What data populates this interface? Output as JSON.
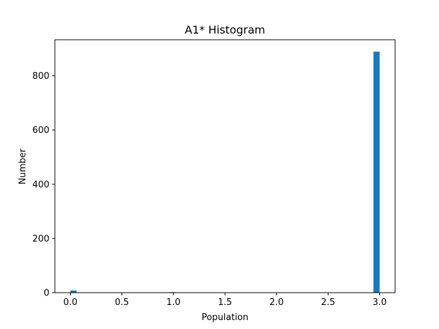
{
  "chart_data": {
    "type": "bar",
    "title": "A1* Histogram",
    "xlabel": "Population",
    "ylabel": "Number",
    "xlim": [
      -0.15,
      3.15
    ],
    "ylim": [
      0,
      933
    ],
    "x_ticks": [
      0.0,
      0.5,
      1.0,
      1.5,
      2.0,
      2.5,
      3.0
    ],
    "x_tick_labels": [
      "0.0",
      "0.5",
      "1.0",
      "1.5",
      "2.0",
      "2.5",
      "3.0"
    ],
    "y_ticks": [
      0,
      200,
      400,
      600,
      800
    ],
    "y_tick_labels": [
      "0",
      "200",
      "400",
      "600",
      "800"
    ],
    "bin_width": 0.06,
    "series": [
      {
        "bins": [
          {
            "x0": 0.0,
            "x1": 0.06,
            "value": 8
          },
          {
            "x0": 0.96,
            "x1": 1.02,
            "value": 2
          },
          {
            "x0": 2.94,
            "x1": 3.0,
            "value": 889
          }
        ]
      }
    ],
    "bar_color": "#1f77b4",
    "grid": false,
    "legend": "none"
  }
}
